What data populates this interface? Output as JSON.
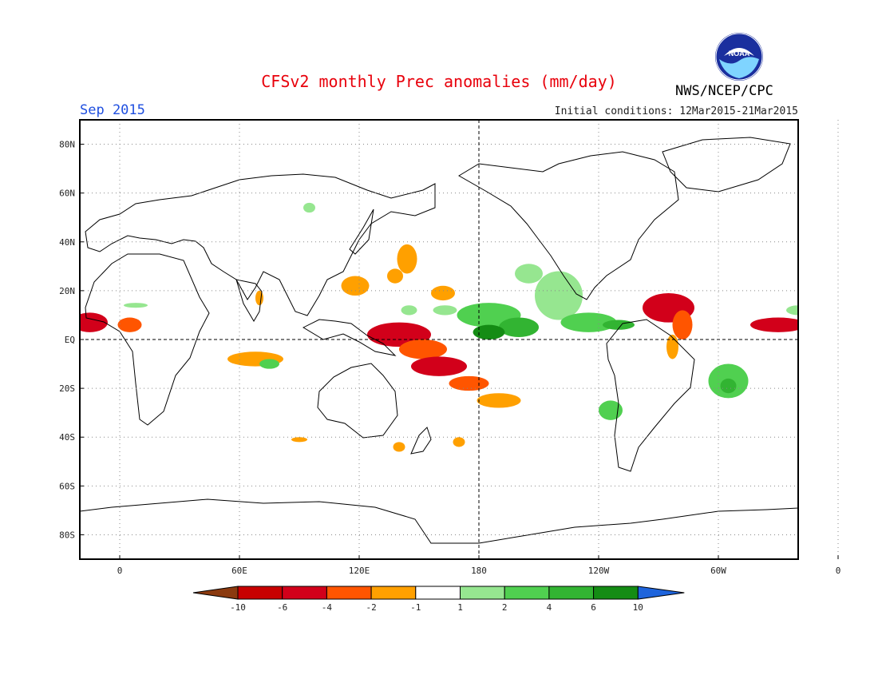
{
  "header": {
    "title": "CFSv2 monthly Prec anomalies (mm/day)",
    "month": "Sep 2015",
    "initial_conditions": "Initial conditions: 12Mar2015-21Mar2015",
    "agency": "NWS/NCEP/CPC",
    "logo_text": "NOAA"
  },
  "map": {
    "lon_range": [
      -20,
      340
    ],
    "lat_range": [
      -90,
      90
    ],
    "lat_ticks": [
      {
        "value": 80,
        "label": "80N"
      },
      {
        "value": 60,
        "label": "60N"
      },
      {
        "value": 40,
        "label": "40N"
      },
      {
        "value": 20,
        "label": "20N"
      },
      {
        "value": 0,
        "label": "EQ"
      },
      {
        "value": -20,
        "label": "20S"
      },
      {
        "value": -40,
        "label": "40S"
      },
      {
        "value": -60,
        "label": "60S"
      },
      {
        "value": -80,
        "label": "80S"
      }
    ],
    "lon_ticks": [
      {
        "value": 0,
        "label": "0"
      },
      {
        "value": 60,
        "label": "60E"
      },
      {
        "value": 120,
        "label": "120E"
      },
      {
        "value": 180,
        "label": "180"
      },
      {
        "value": 240,
        "label": "120W"
      },
      {
        "value": 300,
        "label": "60W"
      },
      {
        "value": 360,
        "label": "0"
      }
    ],
    "colors": {
      "land_outline": "#000000",
      "grid": "#888888"
    }
  },
  "anomalies": [
    {
      "lon": -15,
      "lat": 7,
      "rx": 9,
      "ry": 4,
      "cls": -6
    },
    {
      "lon": 5,
      "lat": 6,
      "rx": 6,
      "ry": 3,
      "cls": -4
    },
    {
      "lon": 330,
      "lat": 6,
      "rx": 14,
      "ry": 3,
      "cls": -6
    },
    {
      "lon": 345,
      "lat": 5,
      "rx": 5,
      "ry": 3,
      "cls": -6
    },
    {
      "lon": 140,
      "lat": 2,
      "rx": 16,
      "ry": 5,
      "cls": -6
    },
    {
      "lon": 152,
      "lat": -4,
      "rx": 12,
      "ry": 4,
      "cls": -4
    },
    {
      "lon": 160,
      "lat": -11,
      "rx": 14,
      "ry": 4,
      "cls": -6
    },
    {
      "lon": 175,
      "lat": -18,
      "rx": 10,
      "ry": 3,
      "cls": -4
    },
    {
      "lon": 190,
      "lat": -25,
      "rx": 11,
      "ry": 3,
      "cls": -2
    },
    {
      "lon": 275,
      "lat": 13,
      "rx": 13,
      "ry": 6,
      "cls": -6
    },
    {
      "lon": 282,
      "lat": 6,
      "rx": 5,
      "ry": 6,
      "cls": -4
    },
    {
      "lon": 277,
      "lat": -3,
      "rx": 3,
      "ry": 5,
      "cls": -2
    },
    {
      "lon": 68,
      "lat": -8,
      "rx": 14,
      "ry": 3,
      "cls": -2
    },
    {
      "lon": 144,
      "lat": 33,
      "rx": 5,
      "ry": 6,
      "cls": -2
    },
    {
      "lon": 138,
      "lat": 26,
      "rx": 4,
      "ry": 3,
      "cls": -2
    },
    {
      "lon": 118,
      "lat": 22,
      "rx": 7,
      "ry": 4,
      "cls": -2
    },
    {
      "lon": 162,
      "lat": 19,
      "rx": 6,
      "ry": 3,
      "cls": -2
    },
    {
      "lon": 90,
      "lat": -41,
      "rx": 4,
      "ry": 1,
      "cls": -2
    },
    {
      "lon": 140,
      "lat": -44,
      "rx": 3,
      "ry": 2,
      "cls": -2
    },
    {
      "lon": 170,
      "lat": -42,
      "rx": 3,
      "ry": 2,
      "cls": -2
    },
    {
      "lon": 70,
      "lat": 17,
      "rx": 2,
      "ry": 3,
      "cls": -2
    },
    {
      "lon": 185,
      "lat": 10,
      "rx": 16,
      "ry": 5,
      "cls": 2
    },
    {
      "lon": 200,
      "lat": 5,
      "rx": 10,
      "ry": 4,
      "cls": 4
    },
    {
      "lon": 185,
      "lat": 3,
      "rx": 8,
      "ry": 3,
      "cls": 6
    },
    {
      "lon": 220,
      "lat": 18,
      "rx": 12,
      "ry": 10,
      "cls": 1
    },
    {
      "lon": 235,
      "lat": 7,
      "rx": 14,
      "ry": 4,
      "cls": 2
    },
    {
      "lon": 250,
      "lat": 6,
      "rx": 8,
      "ry": 2,
      "cls": 4
    },
    {
      "lon": 205,
      "lat": 27,
      "rx": 7,
      "ry": 4,
      "cls": 1
    },
    {
      "lon": 305,
      "lat": -17,
      "rx": 10,
      "ry": 7,
      "cls": 2
    },
    {
      "lon": 305,
      "lat": -19,
      "rx": 4,
      "ry": 3,
      "cls": 4
    },
    {
      "lon": 246,
      "lat": -29,
      "rx": 6,
      "ry": 4,
      "cls": 2
    },
    {
      "lon": 163,
      "lat": 12,
      "rx": 6,
      "ry": 2,
      "cls": 1
    },
    {
      "lon": 145,
      "lat": 12,
      "rx": 4,
      "ry": 2,
      "cls": 1
    },
    {
      "lon": 75,
      "lat": -10,
      "rx": 5,
      "ry": 2,
      "cls": 2
    },
    {
      "lon": 95,
      "lat": 54,
      "rx": 3,
      "ry": 2,
      "cls": 1
    },
    {
      "lon": 340,
      "lat": 12,
      "rx": 6,
      "ry": 2,
      "cls": 1
    },
    {
      "lon": 8,
      "lat": 14,
      "rx": 6,
      "ry": 1,
      "cls": 1
    }
  ],
  "colorbar": {
    "boundaries": [
      "-10",
      "-6",
      "-4",
      "-2",
      "-1",
      "1",
      "2",
      "4",
      "6",
      "10"
    ],
    "colors": [
      "#8b3a0f",
      "#c80000",
      "#d2001a",
      "#ff5500",
      "#ffa000",
      "#ffffff",
      "#96e690",
      "#50d050",
      "#32b432",
      "#148c14",
      "#1e64dc"
    ]
  }
}
